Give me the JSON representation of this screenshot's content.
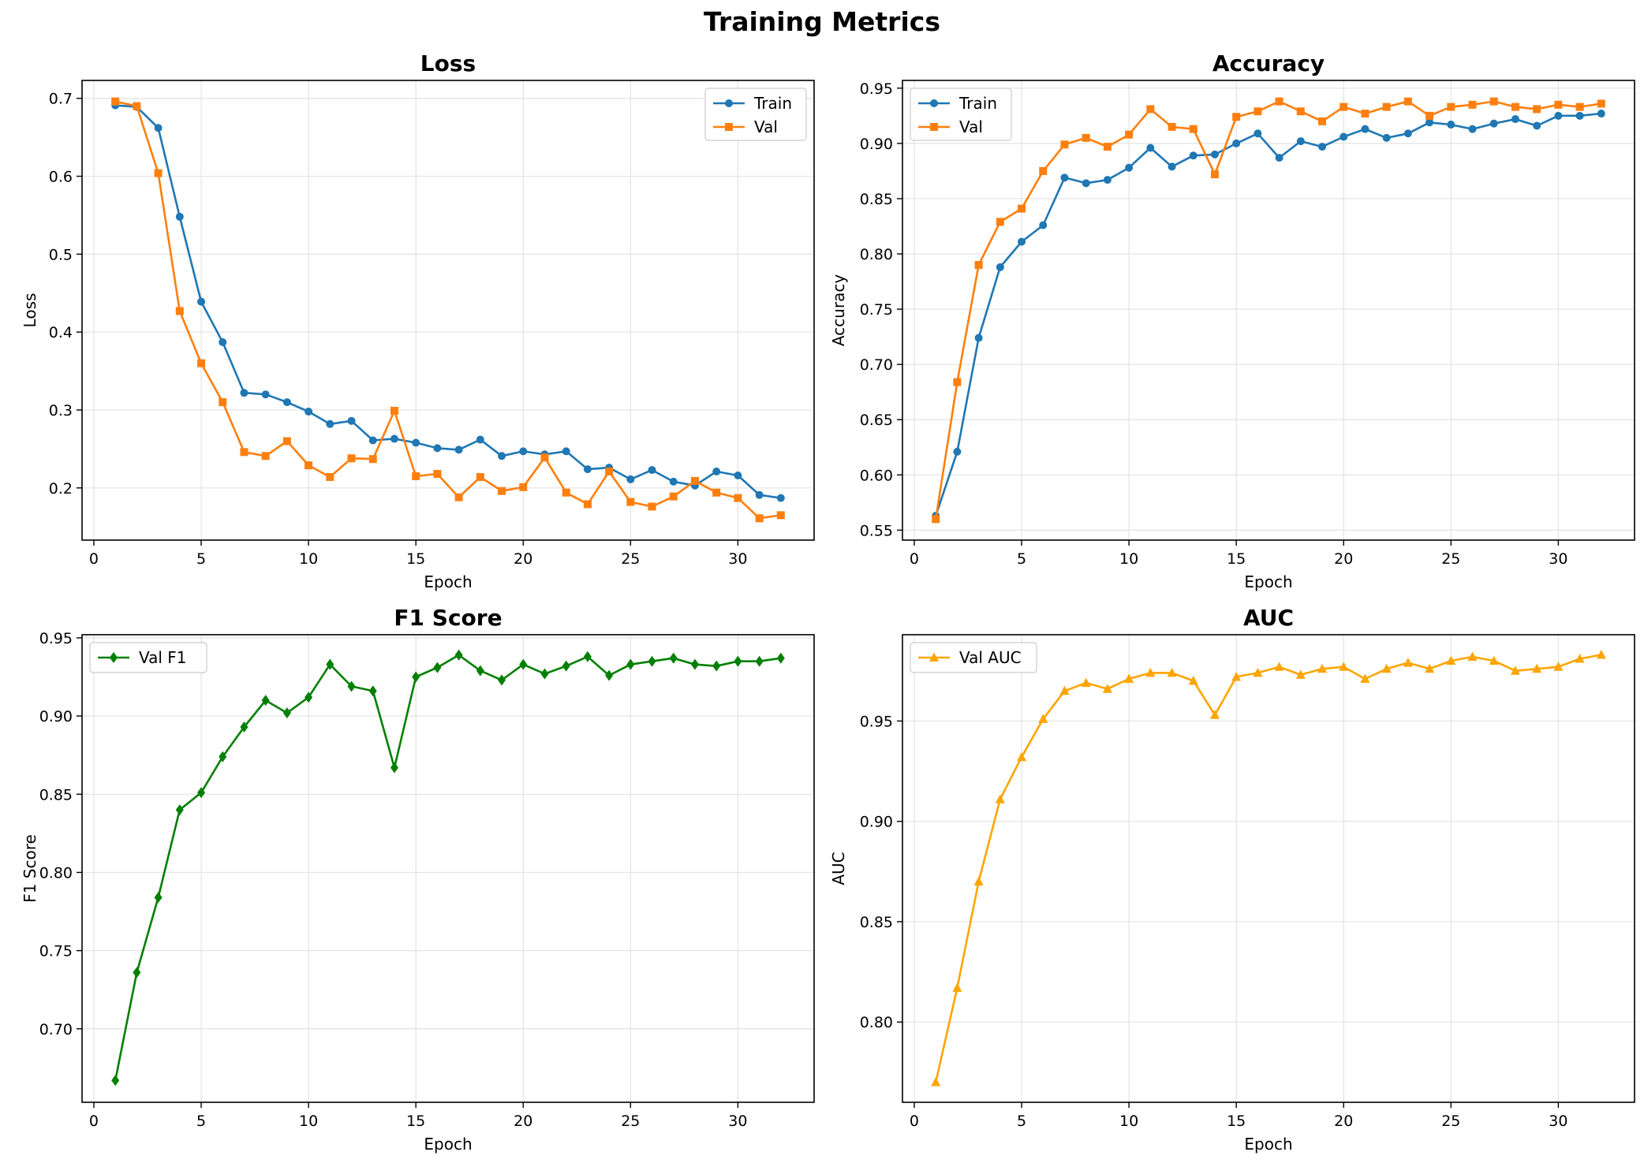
{
  "suptitle": "Training Metrics",
  "chart_data": [
    {
      "type": "line",
      "title": "Loss",
      "xlabel": "Epoch",
      "ylabel": "Loss",
      "xlim": [
        -0.55,
        33.55
      ],
      "ylim": [
        0.133,
        0.723
      ],
      "xticks": [
        0,
        5,
        10,
        15,
        20,
        25,
        30
      ],
      "yticks": [
        0.2,
        0.3,
        0.4,
        0.5,
        0.6,
        0.7
      ],
      "ytick_decimals": 1,
      "grid": true,
      "legend": "top-right",
      "x": [
        1,
        2,
        3,
        4,
        5,
        6,
        7,
        8,
        9,
        10,
        11,
        12,
        13,
        14,
        15,
        16,
        17,
        18,
        19,
        20,
        21,
        22,
        23,
        24,
        25,
        26,
        27,
        28,
        29,
        30,
        31,
        32
      ],
      "series": [
        {
          "name": "Train",
          "color": "#1f77b4",
          "marker": "circle",
          "values": [
            0.691,
            0.689,
            0.662,
            0.548,
            0.439,
            0.387,
            0.322,
            0.32,
            0.31,
            0.298,
            0.282,
            0.286,
            0.261,
            0.263,
            0.258,
            0.251,
            0.249,
            0.262,
            0.241,
            0.247,
            0.243,
            0.247,
            0.224,
            0.226,
            0.211,
            0.223,
            0.208,
            0.203,
            0.221,
            0.216,
            0.191,
            0.187
          ]
        },
        {
          "name": "Val",
          "color": "#ff7f0e",
          "marker": "square",
          "values": [
            0.696,
            0.69,
            0.604,
            0.427,
            0.36,
            0.31,
            0.246,
            0.241,
            0.26,
            0.229,
            0.214,
            0.238,
            0.237,
            0.299,
            0.215,
            0.218,
            0.188,
            0.214,
            0.196,
            0.201,
            0.239,
            0.194,
            0.179,
            0.221,
            0.182,
            0.176,
            0.189,
            0.209,
            0.194,
            0.187,
            0.161,
            0.165
          ]
        }
      ]
    },
    {
      "type": "line",
      "title": "Accuracy",
      "xlabel": "Epoch",
      "ylabel": "Accuracy",
      "xlim": [
        -0.55,
        33.55
      ],
      "ylim": [
        0.541,
        0.957
      ],
      "xticks": [
        0,
        5,
        10,
        15,
        20,
        25,
        30
      ],
      "yticks": [
        0.55,
        0.6,
        0.65,
        0.7,
        0.75,
        0.8,
        0.85,
        0.9,
        0.95
      ],
      "ytick_decimals": 2,
      "grid": true,
      "legend": "top-left",
      "x": [
        1,
        2,
        3,
        4,
        5,
        6,
        7,
        8,
        9,
        10,
        11,
        12,
        13,
        14,
        15,
        16,
        17,
        18,
        19,
        20,
        21,
        22,
        23,
        24,
        25,
        26,
        27,
        28,
        29,
        30,
        31,
        32
      ],
      "series": [
        {
          "name": "Train",
          "color": "#1f77b4",
          "marker": "circle",
          "values": [
            0.563,
            0.621,
            0.724,
            0.788,
            0.811,
            0.826,
            0.869,
            0.864,
            0.867,
            0.878,
            0.896,
            0.879,
            0.889,
            0.89,
            0.9,
            0.909,
            0.887,
            0.902,
            0.897,
            0.906,
            0.913,
            0.905,
            0.909,
            0.919,
            0.917,
            0.913,
            0.918,
            0.922,
            0.916,
            0.925,
            0.925,
            0.927
          ]
        },
        {
          "name": "Val",
          "color": "#ff7f0e",
          "marker": "square",
          "values": [
            0.56,
            0.684,
            0.79,
            0.829,
            0.841,
            0.875,
            0.899,
            0.905,
            0.897,
            0.908,
            0.931,
            0.915,
            0.913,
            0.872,
            0.924,
            0.929,
            0.938,
            0.929,
            0.92,
            0.933,
            0.927,
            0.933,
            0.938,
            0.925,
            0.933,
            0.935,
            0.938,
            0.933,
            0.931,
            0.935,
            0.933,
            0.936
          ]
        }
      ]
    },
    {
      "type": "line",
      "title": "F1 Score",
      "xlabel": "Epoch",
      "ylabel": "F1 Score",
      "xlim": [
        -0.55,
        33.55
      ],
      "ylim": [
        0.653,
        0.952
      ],
      "xticks": [
        0,
        5,
        10,
        15,
        20,
        25,
        30
      ],
      "yticks": [
        0.7,
        0.75,
        0.8,
        0.85,
        0.9,
        0.95
      ],
      "ytick_decimals": 2,
      "grid": true,
      "legend": "top-left",
      "x": [
        1,
        2,
        3,
        4,
        5,
        6,
        7,
        8,
        9,
        10,
        11,
        12,
        13,
        14,
        15,
        16,
        17,
        18,
        19,
        20,
        21,
        22,
        23,
        24,
        25,
        26,
        27,
        28,
        29,
        30,
        31,
        32
      ],
      "series": [
        {
          "name": "Val F1",
          "color": "#008000",
          "marker": "diamond",
          "values": [
            0.667,
            0.736,
            0.784,
            0.84,
            0.851,
            0.874,
            0.893,
            0.91,
            0.902,
            0.912,
            0.933,
            0.919,
            0.916,
            0.867,
            0.925,
            0.931,
            0.939,
            0.929,
            0.923,
            0.933,
            0.927,
            0.932,
            0.938,
            0.926,
            0.933,
            0.935,
            0.937,
            0.933,
            0.932,
            0.935,
            0.935,
            0.937
          ]
        }
      ]
    },
    {
      "type": "line",
      "title": "AUC",
      "xlabel": "Epoch",
      "ylabel": "AUC",
      "xlim": [
        -0.55,
        33.55
      ],
      "ylim": [
        0.76,
        0.993
      ],
      "xticks": [
        0,
        5,
        10,
        15,
        20,
        25,
        30
      ],
      "yticks": [
        0.8,
        0.85,
        0.9,
        0.95
      ],
      "ytick_decimals": 2,
      "grid": true,
      "legend": "top-left",
      "x": [
        1,
        2,
        3,
        4,
        5,
        6,
        7,
        8,
        9,
        10,
        11,
        12,
        13,
        14,
        15,
        16,
        17,
        18,
        19,
        20,
        21,
        22,
        23,
        24,
        25,
        26,
        27,
        28,
        29,
        30,
        31,
        32
      ],
      "series": [
        {
          "name": "Val AUC",
          "color": "#ffa500",
          "marker": "triangle",
          "values": [
            0.77,
            0.817,
            0.87,
            0.911,
            0.932,
            0.951,
            0.965,
            0.969,
            0.966,
            0.971,
            0.974,
            0.974,
            0.97,
            0.953,
            0.972,
            0.974,
            0.977,
            0.973,
            0.976,
            0.977,
            0.971,
            0.976,
            0.979,
            0.976,
            0.98,
            0.982,
            0.98,
            0.975,
            0.976,
            0.977,
            0.981,
            0.983
          ]
        }
      ]
    }
  ]
}
